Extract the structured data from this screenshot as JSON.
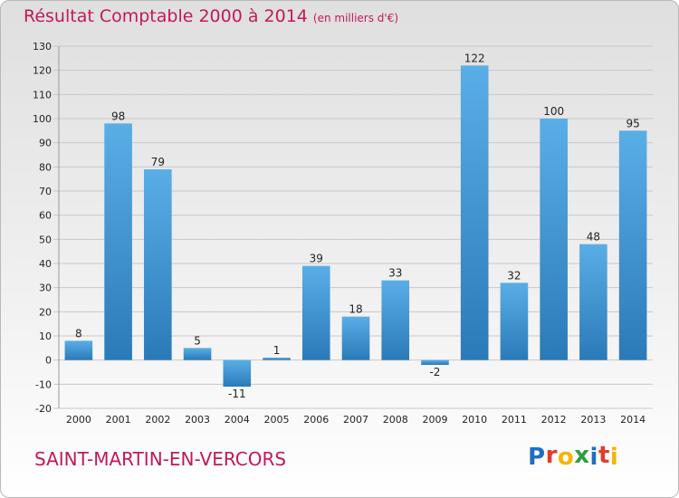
{
  "header": {
    "title": "Résultat Comptable 2000 à 2014",
    "subtitle": "(en milliers d'€)"
  },
  "footer": {
    "commune": "SAINT-MARTIN-EN-VERCORS",
    "brand": "Proxiti",
    "brand_letters": [
      "P",
      "r",
      "o",
      "x",
      "i",
      "t",
      "i"
    ],
    "brand_colors": [
      "#1e6fc2",
      "#e23b2a",
      "#f7b500",
      "#2e9e3e",
      "#1e6fc2",
      "#e23b2a",
      "#f7b500"
    ]
  },
  "colors": {
    "title": "#c2185b",
    "bar_light": "#5aaee6",
    "bar_dark": "#2a7ab8",
    "grid": "#c8c8c8",
    "axis_text": "#222222"
  },
  "chart_data": {
    "type": "bar",
    "title": "Résultat Comptable 2000 à 2014",
    "subtitle": "(en milliers d'€)",
    "xlabel": "",
    "ylabel": "",
    "categories": [
      "2000",
      "2001",
      "2002",
      "2003",
      "2004",
      "2005",
      "2006",
      "2007",
      "2008",
      "2009",
      "2010",
      "2011",
      "2012",
      "2013",
      "2014"
    ],
    "values": [
      8,
      98,
      79,
      5,
      -11,
      1,
      39,
      18,
      33,
      -2,
      122,
      32,
      100,
      48,
      95
    ],
    "ylim": [
      -20,
      130
    ],
    "yticks": [
      -20,
      -10,
      0,
      10,
      20,
      30,
      40,
      50,
      60,
      70,
      80,
      90,
      100,
      110,
      120,
      130
    ],
    "grid": true,
    "legend": "none"
  }
}
